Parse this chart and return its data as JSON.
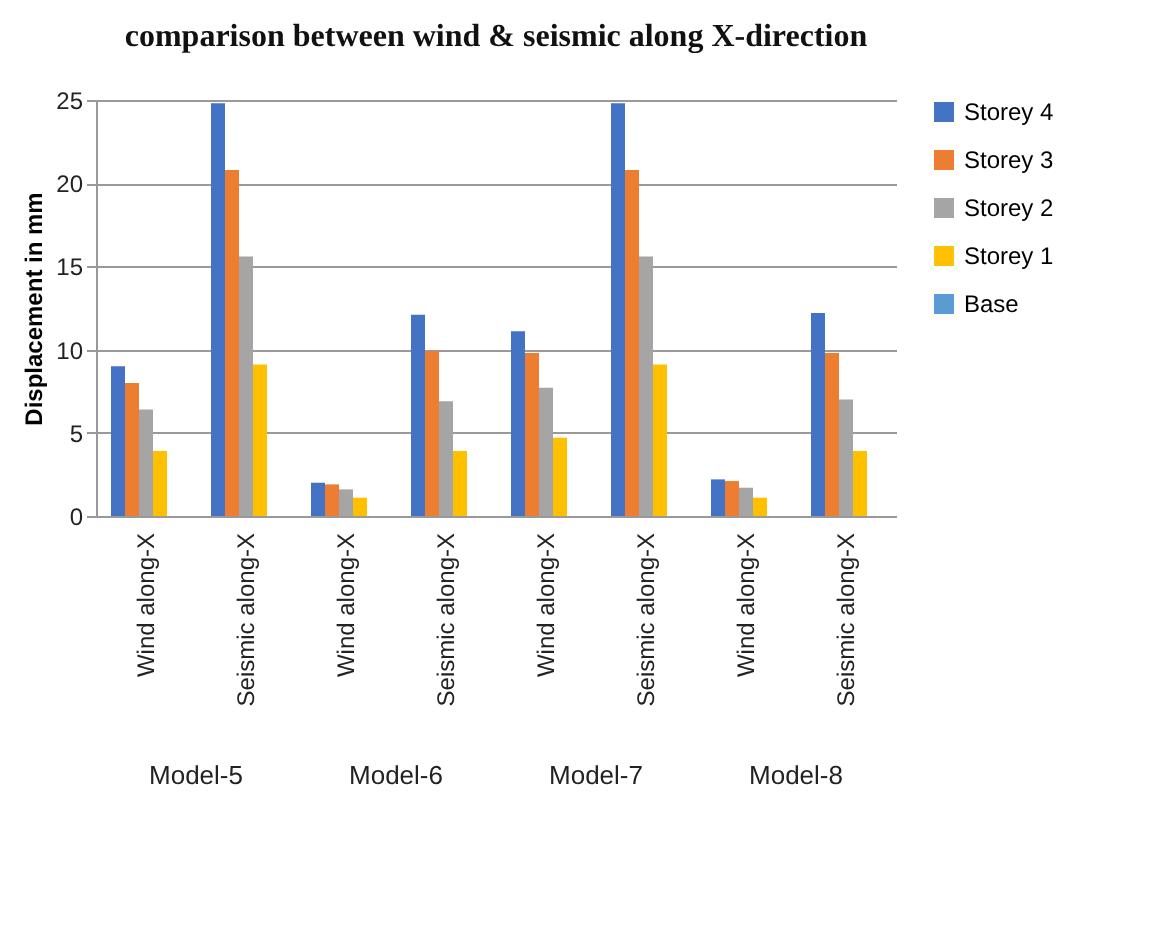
{
  "chart_data": {
    "type": "bar",
    "title": "comparison between wind & seismic along X-direction",
    "ylabel": "Displacement in mm",
    "categories": [
      "Wind along-X",
      "Seismic along-X",
      "Wind along-X",
      "Seismic along-X",
      "Wind along-X",
      "Seismic along-X",
      "Wind along-X",
      "Seismic along-X"
    ],
    "annotations": [
      "Model-5",
      "Model-6",
      "Model-7",
      "Model-8"
    ],
    "series": [
      {
        "name": "Storey 4",
        "color": "#4472c4",
        "values": [
          9,
          24.8,
          2,
          12.1,
          11.1,
          24.8,
          2.2,
          12.2
        ]
      },
      {
        "name": "Storey 3",
        "color": "#ed7d31",
        "values": [
          8,
          20.8,
          1.9,
          9.9,
          9.8,
          20.8,
          2.1,
          9.8
        ]
      },
      {
        "name": "Storey 2",
        "color": "#a5a5a5",
        "values": [
          6.4,
          15.6,
          1.6,
          6.9,
          7.7,
          15.6,
          1.7,
          7
        ]
      },
      {
        "name": "Storey 1",
        "color": "#ffc000",
        "values": [
          3.9,
          9.1,
          1.1,
          3.9,
          4.7,
          9.1,
          1.1,
          3.9
        ]
      },
      {
        "name": "Base",
        "color": "#5b9bd5",
        "values": [
          0,
          0,
          0,
          0,
          0,
          0,
          0,
          0
        ]
      }
    ],
    "ylim": [
      0,
      25
    ],
    "yticks": [
      0,
      5,
      10,
      15,
      20,
      25
    ],
    "grid": "y",
    "legend": "right"
  }
}
